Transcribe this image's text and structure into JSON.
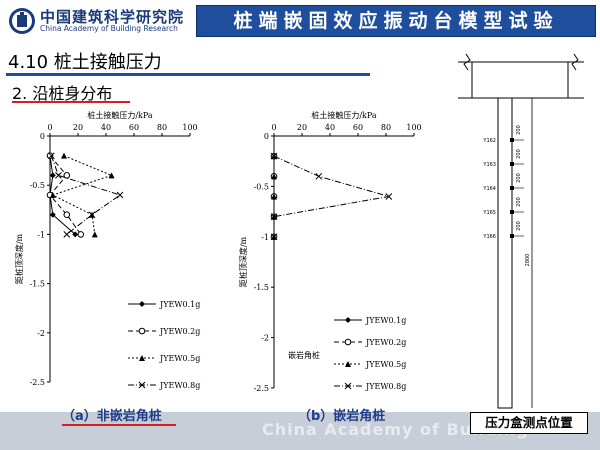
{
  "header": {
    "logo_cn": "中国建筑科学研究院",
    "logo_en": "China Academy of Building Research",
    "title": "桩端嵌固效应振动台模型试验"
  },
  "section": {
    "title": "4.10 桩土接触压力",
    "subtitle": "2. 沿桩身分布"
  },
  "captions": {
    "left": "（a）非嵌岩角桩",
    "middle": "（b）嵌岩角桩",
    "right": "压力盒测点位置"
  },
  "footer": {
    "watermark": "China Academy of Building"
  },
  "colors": {
    "title_bar": "#1f4e9c",
    "accent_line": "#d62020",
    "caption_text": "#1f3e8a"
  },
  "diagram": {
    "labels": [
      "Y162",
      "Y163",
      "Y164",
      "Y165",
      "Y166"
    ],
    "spacings": [
      "200",
      "200",
      "200",
      "200",
      "200"
    ],
    "length": "2800"
  },
  "chart_data": [
    {
      "type": "line",
      "title": "桩土接触压力/kPa",
      "ylabel": "距桩顶深度/m",
      "xlim": [
        0,
        100
      ],
      "ylim": [
        -2.5,
        0
      ],
      "xticks": [
        "0",
        "20",
        "40",
        "60",
        "80",
        "100"
      ],
      "yticks": [
        "0",
        "-0.5",
        "-1",
        "-1.5",
        "-2",
        "-2.5"
      ],
      "legend_position": "bottom-right",
      "annotation": "",
      "series": [
        {
          "name": "JYEW0.1g",
          "marker": "diamond",
          "dash": "solid",
          "points": [
            [
              0,
              -0.2
            ],
            [
              2,
              -0.4
            ],
            [
              0,
              -0.6
            ],
            [
              2,
              -0.8
            ],
            [
              18,
              -1.0
            ]
          ]
        },
        {
          "name": "JYEW0.2g",
          "marker": "circle",
          "dash": "5,3",
          "points": [
            [
              0,
              -0.2
            ],
            [
              12,
              -0.4
            ],
            [
              0,
              -0.6
            ],
            [
              12,
              -0.8
            ],
            [
              22,
              -1.0
            ]
          ]
        },
        {
          "name": "JYEW0.5g",
          "marker": "triangle",
          "dash": "2,2",
          "points": [
            [
              10,
              -0.2
            ],
            [
              44,
              -0.4
            ],
            [
              2,
              -0.6
            ],
            [
              30,
              -0.8
            ],
            [
              32,
              -1.0
            ]
          ]
        },
        {
          "name": "JYEW0.8g",
          "marker": "x",
          "dash": "6,2,1,2",
          "points": [
            [
              1,
              -0.2
            ],
            [
              6,
              -0.4
            ],
            [
              50,
              -0.6
            ],
            [
              30,
              -0.8
            ],
            [
              12,
              -1.0
            ]
          ]
        }
      ]
    },
    {
      "type": "line",
      "title": "桩土接触压力/kPa",
      "ylabel": "距桩顶深度/m",
      "xlim": [
        0,
        100
      ],
      "ylim": [
        -2.5,
        0
      ],
      "xticks": [
        "0",
        "20",
        "40",
        "60",
        "80",
        "100"
      ],
      "yticks": [
        "0",
        "-0.5",
        "-1",
        "-1.5",
        "-2",
        "-2.5"
      ],
      "legend_position": "bottom-right",
      "annotation": "嵌岩角桩",
      "series": [
        {
          "name": "JYEW0.1g",
          "marker": "diamond",
          "dash": "solid",
          "points": [
            [
              0,
              -0.2
            ],
            [
              0,
              -0.4
            ],
            [
              0,
              -0.6
            ],
            [
              0,
              -0.8
            ],
            [
              0,
              -1.0
            ]
          ]
        },
        {
          "name": "JYEW0.2g",
          "marker": "circle",
          "dash": "5,3",
          "points": [
            [
              0,
              -0.2
            ],
            [
              0,
              -0.4
            ],
            [
              0,
              -0.6
            ],
            [
              0,
              -0.8
            ],
            [
              0,
              -1.0
            ]
          ]
        },
        {
          "name": "JYEW0.5g",
          "marker": "triangle",
          "dash": "2,2",
          "points": [
            [
              0,
              -0.2
            ],
            [
              0,
              -0.4
            ],
            [
              0,
              -0.6
            ],
            [
              0,
              -0.8
            ],
            [
              0,
              -1.0
            ]
          ]
        },
        {
          "name": "JYEW0.8g",
          "marker": "x",
          "dash": "6,2,1,2",
          "points": [
            [
              0,
              -0.2
            ],
            [
              32,
              -0.4
            ],
            [
              82,
              -0.6
            ],
            [
              0,
              -0.8
            ],
            [
              0,
              -1.0
            ]
          ]
        }
      ]
    }
  ]
}
